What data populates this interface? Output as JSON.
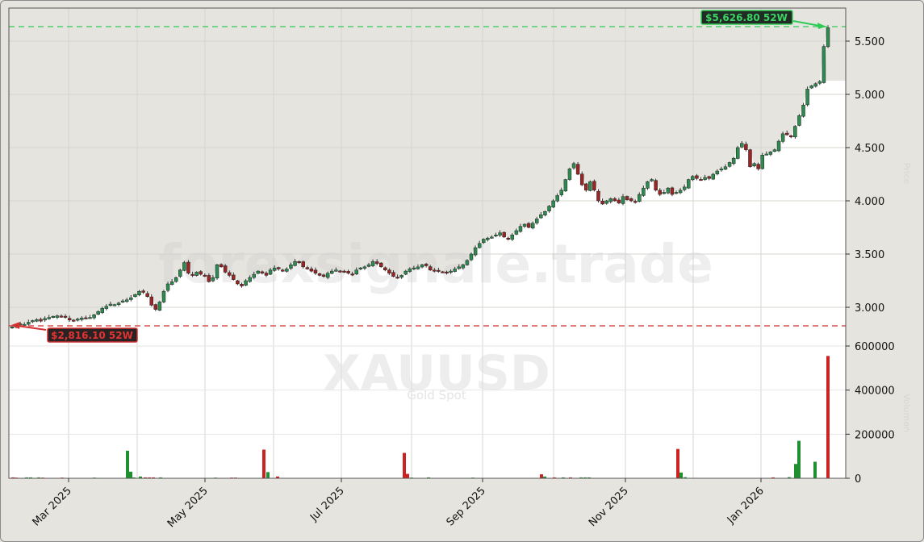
{
  "chart_data": {
    "type": "candlestick",
    "title": "XAUUSD",
    "subtitle": "Gold Spot",
    "watermark": "forexsignale.trade",
    "xlabel": "",
    "ylabel_price": "Price",
    "ylabel_volume": "Volumen",
    "x_ticks": [
      "Mar 2025",
      "May 2025",
      "Jul 2025",
      "Sep 2025",
      "Nov 2025",
      "Jan 2026"
    ],
    "price_ticks": [
      "3.000",
      "3.500",
      "4.000",
      "4.500",
      "5.000",
      "5.500"
    ],
    "price_tick_values": [
      3000,
      3500,
      4000,
      4500,
      5000,
      5500
    ],
    "volume_ticks": [
      "0",
      "200000",
      "400000",
      "600000"
    ],
    "volume_tick_values": [
      0,
      200000,
      400000,
      600000
    ],
    "price_ylim": [
      2660,
      5800
    ],
    "volume_ylim": [
      0,
      600000
    ],
    "grid": true,
    "high_52w": {
      "value": 5626.8,
      "label": "$5,626.80 52W",
      "color": "#2ecc55"
    },
    "low_52w": {
      "value": 2816.1,
      "label": "$2,816.10 52W",
      "color": "#d43030"
    },
    "up_color": "#2e8b4f",
    "down_color": "#9b2424",
    "volume_up_color": "#1f8f2f",
    "volume_down_color": "#cc2222",
    "closes": [
      2816,
      2835,
      2845,
      2840,
      2860,
      2875,
      2885,
      2870,
      2895,
      2905,
      2915,
      2920,
      2910,
      2905,
      2880,
      2870,
      2890,
      2900,
      2895,
      2905,
      2930,
      2960,
      2990,
      3010,
      3030,
      3025,
      3040,
      3060,
      3070,
      3090,
      3120,
      3150,
      3140,
      3100,
      3020,
      2980,
      3050,
      3150,
      3220,
      3240,
      3280,
      3350,
      3420,
      3320,
      3300,
      3330,
      3310,
      3300,
      3240,
      3280,
      3400,
      3380,
      3330,
      3300,
      3260,
      3220,
      3200,
      3250,
      3280,
      3310,
      3340,
      3320,
      3300,
      3350,
      3370,
      3360,
      3340,
      3360,
      3400,
      3430,
      3420,
      3380,
      3360,
      3340,
      3320,
      3300,
      3290,
      3320,
      3340,
      3350,
      3340,
      3330,
      3320,
      3310,
      3350,
      3370,
      3380,
      3400,
      3430,
      3410,
      3380,
      3350,
      3320,
      3290,
      3280,
      3300,
      3340,
      3360,
      3370,
      3380,
      3400,
      3390,
      3350,
      3340,
      3340,
      3330,
      3320,
      3340,
      3360,
      3380,
      3400,
      3440,
      3500,
      3560,
      3600,
      3640,
      3650,
      3660,
      3680,
      3700,
      3660,
      3640,
      3680,
      3720,
      3760,
      3780,
      3750,
      3790,
      3830,
      3870,
      3900,
      3950,
      4000,
      4050,
      4100,
      4200,
      4300,
      4350,
      4250,
      4150,
      4100,
      4180,
      4100,
      4000,
      3970,
      4000,
      4020,
      4000,
      3980,
      4040,
      4010,
      4000,
      3990,
      4060,
      4120,
      4180,
      4200,
      4100,
      4060,
      4080,
      4120,
      4060,
      4080,
      4100,
      4130,
      4200,
      4230,
      4210,
      4200,
      4220,
      4210,
      4250,
      4280,
      4300,
      4320,
      4360,
      4400,
      4500,
      4540,
      4480,
      4320,
      4350,
      4300,
      4430,
      4440,
      4460,
      4480,
      4560,
      4630,
      4620,
      4600,
      4700,
      4800,
      4900,
      5050,
      5080,
      5100,
      5120,
      5450,
      5626
    ],
    "volume_bars": [
      {
        "x": 16,
        "v": 4000,
        "dir": "down"
      },
      {
        "x": 20,
        "v": 3000,
        "dir": "down"
      },
      {
        "x": 33,
        "v": 4000,
        "dir": "up"
      },
      {
        "x": 38,
        "v": 4000,
        "dir": "up"
      },
      {
        "x": 48,
        "v": 4000,
        "dir": "up"
      },
      {
        "x": 53,
        "v": 3000,
        "dir": "down"
      },
      {
        "x": 77,
        "v": 3000,
        "dir": "down"
      },
      {
        "x": 117,
        "v": 3000,
        "dir": "up"
      },
      {
        "x": 158,
        "v": 125000,
        "dir": "up"
      },
      {
        "x": 162,
        "v": 30000,
        "dir": "up"
      },
      {
        "x": 166,
        "v": 4000,
        "dir": "up"
      },
      {
        "x": 174,
        "v": 8000,
        "dir": "up"
      },
      {
        "x": 180,
        "v": 4000,
        "dir": "down"
      },
      {
        "x": 185,
        "v": 4000,
        "dir": "down"
      },
      {
        "x": 190,
        "v": 4000,
        "dir": "down"
      },
      {
        "x": 199,
        "v": 4000,
        "dir": "up"
      },
      {
        "x": 267,
        "v": 3000,
        "dir": "up"
      },
      {
        "x": 287,
        "v": 3000,
        "dir": "down"
      },
      {
        "x": 292,
        "v": 3000,
        "dir": "down"
      },
      {
        "x": 327,
        "v": 130000,
        "dir": "down"
      },
      {
        "x": 332,
        "v": 28000,
        "dir": "up"
      },
      {
        "x": 344,
        "v": 8000,
        "dir": "down"
      },
      {
        "x": 501,
        "v": 115000,
        "dir": "down"
      },
      {
        "x": 505,
        "v": 20000,
        "dir": "down"
      },
      {
        "x": 510,
        "v": 3000,
        "dir": "up"
      },
      {
        "x": 531,
        "v": 4000,
        "dir": "up"
      },
      {
        "x": 586,
        "v": 3000,
        "dir": "up"
      },
      {
        "x": 671,
        "v": 18000,
        "dir": "down"
      },
      {
        "x": 675,
        "v": 8000,
        "dir": "up"
      },
      {
        "x": 687,
        "v": 4000,
        "dir": "down"
      },
      {
        "x": 698,
        "v": 4000,
        "dir": "up"
      },
      {
        "x": 707,
        "v": 4000,
        "dir": "down"
      },
      {
        "x": 720,
        "v": 4000,
        "dir": "up"
      },
      {
        "x": 725,
        "v": 4000,
        "dir": "up"
      },
      {
        "x": 730,
        "v": 4000,
        "dir": "up"
      },
      {
        "x": 840,
        "v": 133000,
        "dir": "down"
      },
      {
        "x": 844,
        "v": 26000,
        "dir": "up"
      },
      {
        "x": 849,
        "v": 5000,
        "dir": "up"
      },
      {
        "x": 958,
        "v": 4000,
        "dir": "down"
      },
      {
        "x": 978,
        "v": 5000,
        "dir": "up"
      },
      {
        "x": 986,
        "v": 65000,
        "dir": "up"
      },
      {
        "x": 990,
        "v": 170000,
        "dir": "up"
      },
      {
        "x": 1010,
        "v": 75000,
        "dir": "up"
      },
      {
        "x": 1026,
        "v": 555000,
        "dir": "down"
      }
    ]
  }
}
